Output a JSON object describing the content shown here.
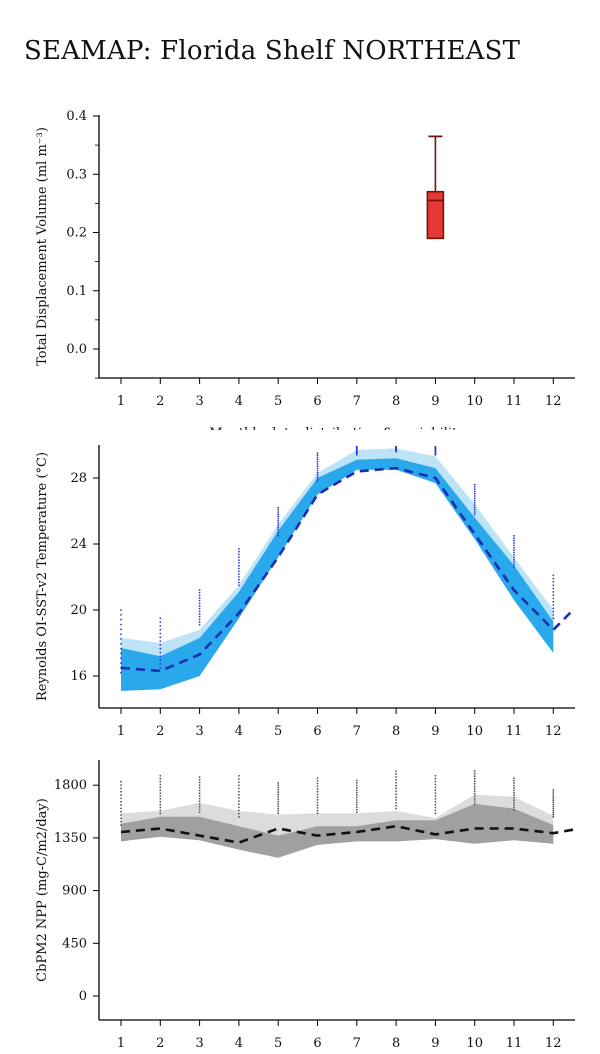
{
  "page": {
    "title": "SEAMAP: Florida Shelf NORTHEAST"
  },
  "chart_data": [
    {
      "type": "box",
      "ylabel": "Total Displacement Volume (ml m⁻³)",
      "xlabel": "Monthly data distribution & variability",
      "x_ticks": [
        "1",
        "2",
        "3",
        "4",
        "5",
        "6",
        "7",
        "8",
        "9",
        "10",
        "11",
        "12"
      ],
      "y_ticks": [
        "0.0",
        "0.1",
        "0.2",
        "0.3",
        "0.4"
      ],
      "ylim": [
        -0.05,
        0.4
      ],
      "xlim": [
        0.5,
        12.5
      ],
      "boxes": [
        {
          "month": 9,
          "whisker_low": 0.19,
          "q1": 0.19,
          "median": 0.255,
          "q3": 0.27,
          "whisker_high": 0.365
        }
      ],
      "colors": {
        "box_fill": "#e53935",
        "box_edge": "#7a1010"
      }
    },
    {
      "type": "area",
      "ylabel": "Reynolds OI-SST-v2 Temperature (°C)",
      "x_ticks": [
        "1",
        "2",
        "3",
        "4",
        "5",
        "6",
        "7",
        "8",
        "9",
        "10",
        "11",
        "12"
      ],
      "y_ticks": [
        "16",
        "20",
        "24",
        "28"
      ],
      "ylim": [
        14.0,
        30.0
      ],
      "xlim": [
        0.5,
        12.5
      ],
      "months": [
        1,
        2,
        3,
        4,
        5,
        6,
        7,
        8,
        9,
        10,
        11,
        12
      ],
      "outer_band": {
        "low": [
          15.1,
          15.2,
          16.0,
          19.5,
          23.2,
          27.0,
          28.5,
          28.5,
          27.7,
          24.3,
          20.6,
          17.4
        ],
        "high": [
          18.3,
          18.0,
          18.8,
          21.5,
          25.2,
          28.3,
          29.7,
          29.8,
          29.3,
          26.4,
          23.2,
          20.0
        ]
      },
      "inner_band": {
        "low": [
          15.1,
          15.2,
          16.0,
          19.5,
          23.2,
          27.0,
          28.5,
          28.5,
          27.7,
          24.3,
          20.6,
          17.4
        ],
        "high": [
          17.7,
          17.2,
          18.3,
          21.1,
          24.8,
          28.0,
          29.1,
          29.2,
          28.6,
          25.6,
          22.7,
          19.3
        ]
      },
      "mean_curve": {
        "x": [
          1,
          2,
          3,
          4,
          5,
          6,
          7,
          8,
          9,
          10,
          11,
          12,
          12.5
        ],
        "y": [
          16.5,
          16.3,
          17.3,
          19.8,
          23.2,
          27.0,
          28.4,
          28.6,
          28.0,
          24.6,
          21.2,
          18.8,
          20.0
        ]
      },
      "observations": [
        {
          "month": 1,
          "min": 16.2,
          "max": 20.0
        },
        {
          "month": 2,
          "min": 16.5,
          "max": 19.5
        },
        {
          "month": 3,
          "min": 19.1,
          "max": 21.2
        },
        {
          "month": 4,
          "min": 21.5,
          "max": 23.7
        },
        {
          "month": 5,
          "min": 24.5,
          "max": 26.2
        },
        {
          "month": 6,
          "min": 27.8,
          "max": 29.5
        },
        {
          "month": 7,
          "min": 29.4,
          "max": 29.9
        },
        {
          "month": 8,
          "min": 29.6,
          "max": 29.9
        },
        {
          "month": 9,
          "min": 29.4,
          "max": 29.9
        },
        {
          "month": 10,
          "min": 25.8,
          "max": 27.6
        },
        {
          "month": 11,
          "min": 22.6,
          "max": 24.5
        },
        {
          "month": 12,
          "min": 19.5,
          "max": 22.1
        }
      ],
      "colors": {
        "outer_band": "#bde3f6",
        "inner_band": "#2aa8ec",
        "mean": "#1a2fb0",
        "obs": "#2b3bd9"
      }
    },
    {
      "type": "area",
      "ylabel": "CbPM2 NPP (mg-C/m2/day)",
      "x_ticks": [
        "1",
        "2",
        "3",
        "4",
        "5",
        "6",
        "7",
        "8",
        "9",
        "10",
        "11",
        "12"
      ],
      "y_ticks": [
        "0",
        "450",
        "900",
        "1350",
        "1800"
      ],
      "ylim": [
        -220,
        1960
      ],
      "xlim": [
        0.5,
        12.5
      ],
      "months": [
        1,
        2,
        3,
        4,
        5,
        6,
        7,
        8,
        9,
        10,
        11,
        12
      ],
      "outer_band": {
        "low": [
          1320,
          1360,
          1330,
          1250,
          1180,
          1290,
          1320,
          1320,
          1340,
          1300,
          1330,
          1300
        ],
        "high": [
          1560,
          1580,
          1650,
          1580,
          1550,
          1560,
          1560,
          1580,
          1520,
          1720,
          1700,
          1540
        ]
      },
      "inner_band": {
        "low": [
          1320,
          1360,
          1330,
          1250,
          1180,
          1290,
          1320,
          1320,
          1340,
          1300,
          1330,
          1300
        ],
        "high": [
          1470,
          1530,
          1530,
          1450,
          1370,
          1450,
          1450,
          1500,
          1500,
          1640,
          1600,
          1460
        ]
      },
      "mean_curve": {
        "x": [
          1,
          2,
          3,
          4,
          5,
          6,
          7,
          8,
          9,
          10,
          11,
          12,
          12.5
        ],
        "y": [
          1400,
          1430,
          1370,
          1310,
          1430,
          1370,
          1400,
          1450,
          1380,
          1430,
          1430,
          1390,
          1420
        ]
      },
      "observations": [
        {
          "month": 1,
          "min": 1460,
          "max": 1830
        },
        {
          "month": 2,
          "min": 1560,
          "max": 1880
        },
        {
          "month": 3,
          "min": 1570,
          "max": 1870
        },
        {
          "month": 4,
          "min": 1530,
          "max": 1880
        },
        {
          "month": 5,
          "min": 1560,
          "max": 1820
        },
        {
          "month": 6,
          "min": 1560,
          "max": 1860
        },
        {
          "month": 7,
          "min": 1570,
          "max": 1840
        },
        {
          "month": 8,
          "min": 1600,
          "max": 1920
        },
        {
          "month": 9,
          "min": 1560,
          "max": 1880
        },
        {
          "month": 10,
          "min": 1640,
          "max": 1920
        },
        {
          "month": 11,
          "min": 1590,
          "max": 1860
        },
        {
          "month": 12,
          "min": 1530,
          "max": 1760
        }
      ],
      "colors": {
        "outer_band": "#dcdcdc",
        "inner_band": "#a0a0a0",
        "mean": "#111111",
        "obs": "#555555"
      }
    }
  ]
}
